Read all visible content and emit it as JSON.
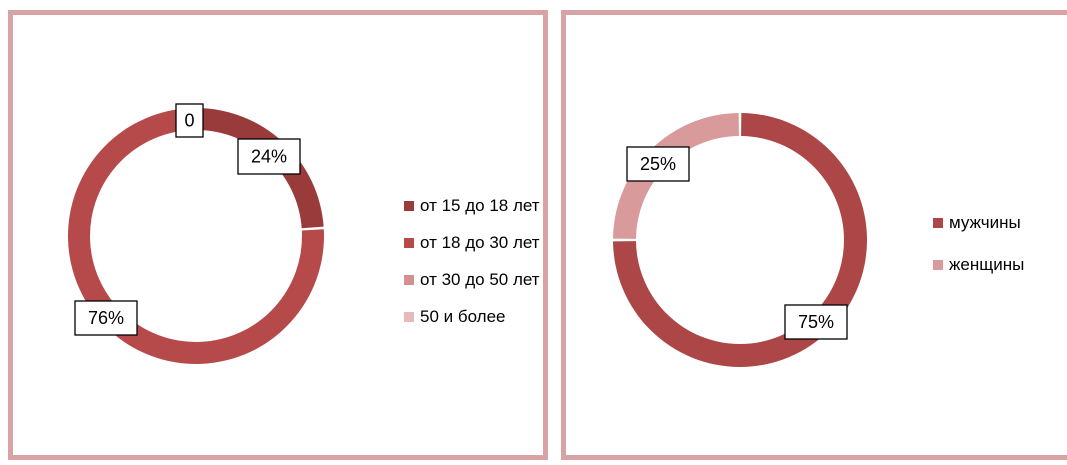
{
  "chart_data": [
    {
      "type": "donut",
      "legend_position": "right",
      "series": [
        {
          "name": "от 15 до 18 лет",
          "value": 24,
          "label": "24%",
          "color": "#9a3b3b"
        },
        {
          "name": "от 18 до 30 лет",
          "value": 76,
          "label": "76%",
          "color": "#b64a4a"
        },
        {
          "name": "от 30 до 50 лет",
          "value": 0,
          "label": "0",
          "color": "#d39090"
        },
        {
          "name": "50 и более",
          "value": 0,
          "label": "",
          "color": "#e8b9b9"
        }
      ]
    },
    {
      "type": "donut",
      "legend_position": "right",
      "series": [
        {
          "name": "мужчины",
          "value": 75,
          "label": "75%",
          "color": "#ad4646"
        },
        {
          "name": "женщины",
          "value": 25,
          "label": "25%",
          "color": "#d89a9a"
        }
      ]
    }
  ],
  "colors": {
    "panel_border": "#d9a2a4"
  }
}
